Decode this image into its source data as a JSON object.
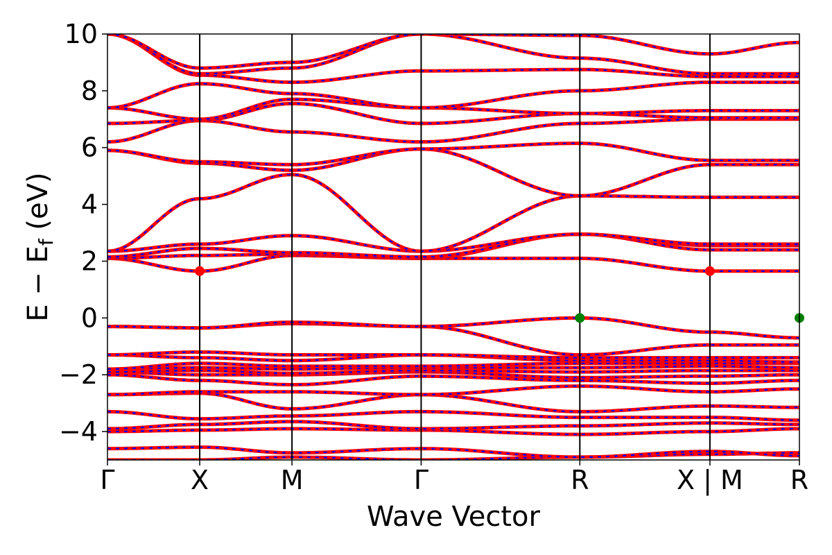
{
  "chart_data": {
    "type": "line",
    "xlabel": "Wave Vector",
    "ylabel_main": "E − E",
    "ylabel_sub": "f",
    "ylabel_unit": " (eV)",
    "ylim": [
      -5,
      10
    ],
    "yticks": [
      10,
      8,
      6,
      4,
      2,
      0,
      -2,
      -4
    ],
    "ytick_labels": [
      "10",
      "8",
      "6",
      "4",
      "2",
      "0",
      "−2",
      "−4"
    ],
    "xlim": [
      0,
      7.5
    ],
    "kpoints": [
      {
        "label": "Γ",
        "x": 0
      },
      {
        "label": "X",
        "x": 1.0
      },
      {
        "label": "M",
        "x": 2.0
      },
      {
        "label": "Γ",
        "x": 3.4
      },
      {
        "label": "R",
        "x": 5.12
      },
      {
        "label": "X | M",
        "x": 6.53
      },
      {
        "label": "R",
        "x": 7.5
      }
    ],
    "band_colors": {
      "up": "#ff0000",
      "down": "#0000ff"
    },
    "markers": [
      {
        "name": "CBM",
        "x": 1.0,
        "y": 1.65,
        "color": "#ff0000"
      },
      {
        "name": "CBM",
        "x": 6.53,
        "y": 1.65,
        "color": "#ff0000"
      },
      {
        "name": "VBM",
        "x": 5.12,
        "y": 0.0,
        "color": "#008000"
      },
      {
        "name": "VBM",
        "x": 7.5,
        "y": 0.0,
        "color": "#008000"
      }
    ],
    "bands": [
      [
        -5.0,
        -5.0,
        -4.9,
        -5.0,
        -4.9,
        -4.8,
        -4.75,
        -4.95
      ],
      [
        -4.6,
        -4.55,
        -4.75,
        -4.6,
        -4.9,
        -4.7,
        -4.85,
        -5.0
      ],
      [
        -4.0,
        -3.95,
        -3.9,
        -3.95,
        -4.1,
        -4.0,
        -3.9,
        -4.0
      ],
      [
        -3.9,
        -3.75,
        -3.65,
        -3.9,
        -3.8,
        -3.7,
        -3.75,
        -3.8
      ],
      [
        -3.3,
        -3.55,
        -3.45,
        -3.3,
        -3.5,
        -3.5,
        -3.6,
        -3.6
      ],
      [
        -2.7,
        -2.65,
        -3.2,
        -2.7,
        -3.3,
        -3.1,
        -3.15,
        -3.2
      ],
      [
        -2.7,
        -2.6,
        -2.6,
        -2.7,
        -2.4,
        -2.6,
        -2.5,
        -2.2
      ],
      [
        -2.0,
        -2.2,
        -2.35,
        -2.05,
        -2.2,
        -2.3,
        -2.2,
        -2.1
      ],
      [
        -1.9,
        -2.0,
        -2.0,
        -1.9,
        -2.1,
        -2.05,
        -2.0,
        -2.0
      ],
      [
        -1.9,
        -1.85,
        -1.95,
        -1.85,
        -1.9,
        -1.85,
        -1.85,
        -1.9
      ],
      [
        -1.8,
        -1.75,
        -1.8,
        -1.75,
        -1.75,
        -1.7,
        -1.75,
        -1.8
      ],
      [
        -1.8,
        -1.6,
        -1.7,
        -1.7,
        -1.6,
        -1.6,
        -1.6,
        -1.7
      ],
      [
        -1.3,
        -1.4,
        -1.5,
        -1.3,
        -1.5,
        -1.5,
        -1.55,
        -1.5
      ],
      [
        -1.3,
        -1.2,
        -1.3,
        -1.3,
        -1.4,
        -1.4,
        -1.4,
        -1.6
      ],
      [
        -0.3,
        -0.35,
        -0.2,
        -0.3,
        -1.3,
        -0.95,
        -0.95,
        -1.55
      ],
      [
        -0.3,
        -0.35,
        -0.15,
        -0.3,
        0.0,
        -0.5,
        -0.7,
        0.0
      ],
      [
        2.1,
        1.65,
        2.2,
        2.1,
        2.1,
        1.65,
        1.65,
        2.1
      ],
      [
        2.1,
        2.2,
        2.25,
        2.1,
        2.95,
        2.4,
        2.4,
        2.1
      ],
      [
        2.15,
        2.45,
        2.3,
        2.15,
        2.95,
        2.55,
        2.55,
        2.95
      ],
      [
        2.35,
        2.6,
        2.9,
        2.35,
        2.95,
        2.6,
        2.6,
        2.95
      ],
      [
        2.35,
        4.2,
        5.05,
        2.35,
        4.3,
        4.25,
        4.25,
        4.3
      ],
      [
        5.9,
        5.45,
        5.2,
        5.95,
        4.3,
        5.4,
        5.4,
        4.3
      ],
      [
        5.9,
        5.5,
        5.4,
        5.95,
        6.15,
        5.55,
        5.55,
        6.15
      ],
      [
        6.2,
        6.95,
        6.55,
        6.2,
        6.85,
        7.0,
        7.0,
        7.2
      ],
      [
        6.85,
        6.95,
        7.55,
        6.85,
        7.2,
        7.05,
        7.05,
        7.2
      ],
      [
        7.4,
        7.0,
        7.7,
        7.4,
        7.2,
        7.3,
        7.3,
        7.75
      ],
      [
        7.4,
        8.25,
        7.9,
        7.4,
        8.0,
        8.3,
        8.3,
        8.0
      ],
      [
        10.0,
        8.55,
        8.3,
        8.7,
        8.75,
        8.5,
        8.5,
        8.75
      ],
      [
        10.0,
        8.6,
        8.8,
        10.0,
        9.15,
        8.6,
        8.6,
        9.15
      ],
      [
        10.0,
        8.8,
        9.0,
        10.0,
        9.95,
        9.3,
        9.7,
        9.95
      ]
    ]
  }
}
